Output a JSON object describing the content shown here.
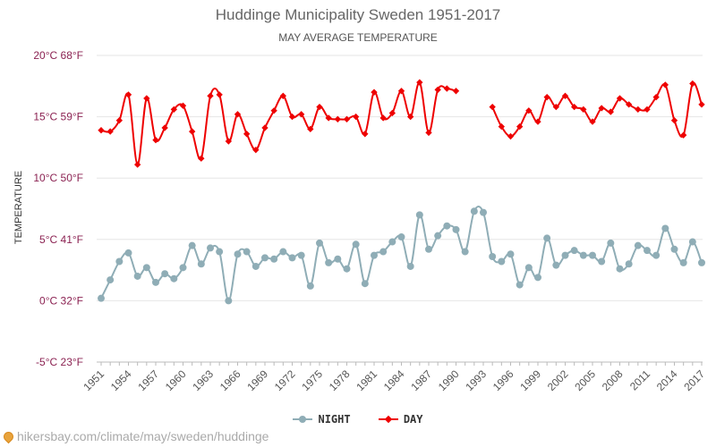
{
  "header": {
    "title": "Huddinge Municipality Sweden 1951-2017",
    "subtitle": "MAY AVERAGE TEMPERATURE"
  },
  "chart_data": {
    "type": "line",
    "title": "Huddinge Municipality Sweden 1951-2017",
    "subtitle": "MAY AVERAGE TEMPERATURE",
    "ylabel": "TEMPERATURE",
    "xlabel": "",
    "ylim": [
      -5,
      20
    ],
    "xlim": [
      1951,
      2017
    ],
    "y_ticks": [
      {
        "value": 20,
        "label": "20°C 68°F"
      },
      {
        "value": 15,
        "label": "15°C 59°F"
      },
      {
        "value": 10,
        "label": "10°C 50°F"
      },
      {
        "value": 5,
        "label": "5°C 41°F"
      },
      {
        "value": 0,
        "label": "0°C 32°F"
      },
      {
        "value": -5,
        "label": "-5°C 23°F"
      }
    ],
    "x_ticks": [
      "1951",
      "1954",
      "1957",
      "1960",
      "1963",
      "1966",
      "1969",
      "1972",
      "1975",
      "1978",
      "1981",
      "1984",
      "1987",
      "1990",
      "1993",
      "1996",
      "1999",
      "2002",
      "2005",
      "2008",
      "2011",
      "2014",
      "2017"
    ],
    "grid": true,
    "legend_position": "bottom",
    "x": [
      1951,
      1952,
      1953,
      1954,
      1955,
      1956,
      1957,
      1958,
      1959,
      1960,
      1961,
      1962,
      1963,
      1964,
      1965,
      1966,
      1967,
      1968,
      1969,
      1970,
      1971,
      1972,
      1973,
      1974,
      1975,
      1976,
      1977,
      1978,
      1979,
      1980,
      1981,
      1982,
      1983,
      1984,
      1985,
      1986,
      1987,
      1988,
      1989,
      1990,
      1991,
      1992,
      1993,
      1994,
      1995,
      1996,
      1997,
      1998,
      1999,
      2000,
      2001,
      2002,
      2003,
      2004,
      2005,
      2006,
      2007,
      2008,
      2009,
      2010,
      2011,
      2012,
      2013,
      2014,
      2015,
      2016,
      2017
    ],
    "series": [
      {
        "name": "NIGHT",
        "color": "#8fadb6",
        "marker": "circle",
        "values": [
          0.2,
          1.7,
          3.2,
          3.9,
          2.0,
          2.7,
          1.5,
          2.2,
          1.8,
          2.7,
          4.5,
          3.0,
          4.3,
          4.0,
          0.0,
          3.8,
          4.0,
          2.8,
          3.5,
          3.4,
          4.0,
          3.5,
          3.7,
          1.2,
          4.7,
          3.1,
          3.4,
          2.6,
          4.6,
          1.4,
          3.7,
          4.0,
          4.8,
          5.2,
          2.8,
          7.0,
          4.2,
          5.3,
          6.1,
          5.8,
          4.0,
          7.3,
          7.2,
          3.6,
          3.2,
          3.8,
          1.3,
          2.7,
          1.9,
          5.1,
          2.9,
          3.7,
          4.1,
          3.7,
          3.7,
          3.2,
          4.7,
          2.6,
          3.0,
          4.5,
          4.1,
          3.7,
          5.9,
          4.2,
          3.1,
          4.8,
          3.1
        ]
      },
      {
        "name": "DAY",
        "color": "#ee0000",
        "marker": "diamond",
        "values": [
          13.9,
          13.8,
          14.7,
          16.8,
          11.1,
          16.5,
          13.1,
          14.1,
          15.6,
          15.9,
          13.8,
          11.6,
          16.7,
          16.8,
          13.0,
          15.2,
          13.6,
          12.3,
          14.1,
          15.5,
          16.7,
          15.0,
          15.2,
          14.0,
          15.8,
          14.9,
          14.8,
          14.8,
          15.0,
          13.6,
          17.0,
          14.9,
          15.3,
          17.1,
          15.0,
          17.8,
          13.7,
          17.2,
          17.3,
          17.1,
          null,
          null,
          null,
          15.8,
          14.2,
          13.4,
          14.2,
          15.5,
          14.6,
          16.6,
          15.8,
          16.7,
          15.8,
          15.6,
          14.6,
          15.7,
          15.4,
          16.5,
          16.0,
          15.6,
          15.6,
          16.6,
          17.6,
          14.7,
          13.5,
          17.7,
          16.0
        ]
      }
    ]
  },
  "legend": {
    "night_label": "NIGHT",
    "day_label": "DAY"
  },
  "footer": {
    "source_text": "hikersbay.com/climate/may/sweden/huddinge",
    "icon": "location-pin-icon"
  }
}
